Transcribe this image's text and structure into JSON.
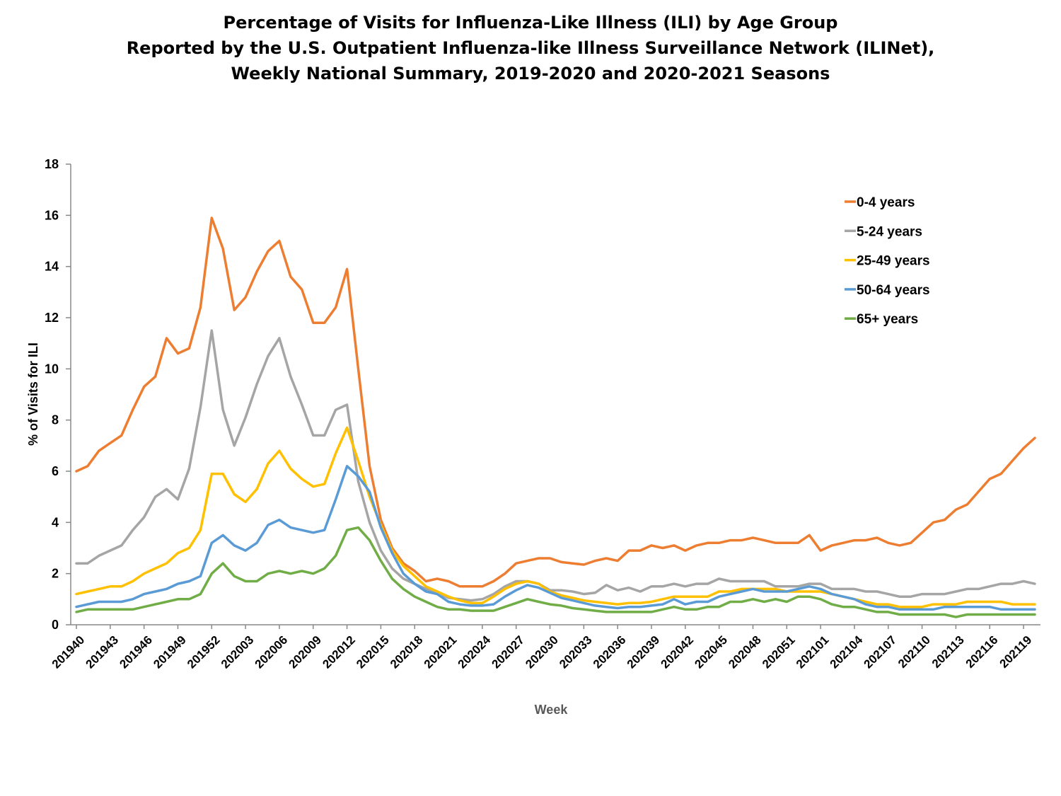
{
  "chart_data": {
    "type": "line",
    "title": [
      "Percentage of Visits for Influenza-Like Illness (ILI) by Age Group",
      "Reported by the U.S. Outpatient Influenza-like Illness Surveillance Network (ILINet),",
      "Weekly National Summary, 2019-2020 and 2020-2021 Seasons"
    ],
    "xlabel": "Week",
    "ylabel": "% of Visits for ILI",
    "ylim": [
      0,
      18
    ],
    "yticks": [
      0,
      2,
      4,
      6,
      8,
      10,
      12,
      14,
      16,
      18
    ],
    "x_count": 86,
    "xtick_labels": [
      {
        "index": 0,
        "label": "201940"
      },
      {
        "index": 3,
        "label": "201943"
      },
      {
        "index": 6,
        "label": "201946"
      },
      {
        "index": 9,
        "label": "201949"
      },
      {
        "index": 12,
        "label": "201952"
      },
      {
        "index": 15,
        "label": "202003"
      },
      {
        "index": 18,
        "label": "202006"
      },
      {
        "index": 21,
        "label": "202009"
      },
      {
        "index": 24,
        "label": "202012"
      },
      {
        "index": 27,
        "label": "202015"
      },
      {
        "index": 30,
        "label": "202018"
      },
      {
        "index": 33,
        "label": "202021"
      },
      {
        "index": 36,
        "label": "202024"
      },
      {
        "index": 39,
        "label": "202027"
      },
      {
        "index": 42,
        "label": "202030"
      },
      {
        "index": 45,
        "label": "202033"
      },
      {
        "index": 48,
        "label": "202036"
      },
      {
        "index": 51,
        "label": "202039"
      },
      {
        "index": 54,
        "label": "202042"
      },
      {
        "index": 57,
        "label": "202045"
      },
      {
        "index": 60,
        "label": "202048"
      },
      {
        "index": 63,
        "label": "202051"
      },
      {
        "index": 66,
        "label": "202101"
      },
      {
        "index": 69,
        "label": "202104"
      },
      {
        "index": 72,
        "label": "202107"
      },
      {
        "index": 75,
        "label": "202110"
      },
      {
        "index": 78,
        "label": "202113"
      },
      {
        "index": 81,
        "label": "202116"
      },
      {
        "index": 84,
        "label": "202119"
      }
    ],
    "legend_position": "top-right",
    "series": [
      {
        "name": "0-4 years",
        "color": "#ED7D31",
        "values": [
          6.0,
          6.2,
          6.8,
          7.1,
          7.4,
          8.4,
          9.3,
          9.7,
          11.2,
          10.6,
          10.8,
          12.4,
          15.9,
          14.7,
          12.3,
          12.8,
          13.8,
          14.6,
          15.0,
          13.6,
          13.1,
          11.8,
          11.8,
          12.4,
          13.9,
          10.0,
          6.2,
          4.1,
          3.0,
          2.4,
          2.1,
          1.7,
          1.8,
          1.7,
          1.5,
          1.5,
          1.5,
          1.7,
          2.0,
          2.4,
          2.5,
          2.6,
          2.6,
          2.45,
          2.4,
          2.35,
          2.5,
          2.6,
          2.5,
          2.9,
          2.9,
          3.1,
          3.0,
          3.1,
          2.9,
          3.1,
          3.2,
          3.2,
          3.3,
          3.3,
          3.4,
          3.3,
          3.2,
          3.2,
          3.2,
          3.5,
          2.9,
          3.1,
          3.2,
          3.3,
          3.3,
          3.4,
          3.2,
          3.1,
          3.2,
          3.6,
          4.0,
          4.1,
          4.5,
          4.7,
          5.2,
          5.7,
          5.9,
          6.4,
          6.9,
          7.3
        ]
      },
      {
        "name": "5-24 years",
        "color": "#A5A5A5",
        "values": [
          2.4,
          2.4,
          2.7,
          2.9,
          3.1,
          3.7,
          4.2,
          5.0,
          5.3,
          4.9,
          6.1,
          8.5,
          11.5,
          8.4,
          7.0,
          8.1,
          9.4,
          10.5,
          11.2,
          9.7,
          8.6,
          7.4,
          7.4,
          8.4,
          8.6,
          5.6,
          4.0,
          2.9,
          2.2,
          1.8,
          1.6,
          1.4,
          1.25,
          1.05,
          1.0,
          0.95,
          1.0,
          1.2,
          1.5,
          1.7,
          1.7,
          1.6,
          1.35,
          1.35,
          1.3,
          1.2,
          1.25,
          1.55,
          1.35,
          1.45,
          1.3,
          1.5,
          1.5,
          1.6,
          1.5,
          1.6,
          1.6,
          1.8,
          1.7,
          1.7,
          1.7,
          1.7,
          1.5,
          1.5,
          1.5,
          1.6,
          1.6,
          1.4,
          1.4,
          1.4,
          1.3,
          1.3,
          1.2,
          1.1,
          1.1,
          1.2,
          1.2,
          1.2,
          1.3,
          1.4,
          1.4,
          1.5,
          1.6,
          1.6,
          1.7,
          1.6
        ]
      },
      {
        "name": "25-49 years",
        "color": "#FFC000",
        "values": [
          1.2,
          1.3,
          1.4,
          1.5,
          1.5,
          1.7,
          2.0,
          2.2,
          2.4,
          2.8,
          3.0,
          3.7,
          5.9,
          5.9,
          5.1,
          4.8,
          5.3,
          6.3,
          6.8,
          6.1,
          5.7,
          5.4,
          5.5,
          6.7,
          7.7,
          6.4,
          5.0,
          3.9,
          2.9,
          2.3,
          1.9,
          1.5,
          1.3,
          1.1,
          0.95,
          0.85,
          0.85,
          1.1,
          1.4,
          1.6,
          1.7,
          1.6,
          1.3,
          1.15,
          1.05,
          0.95,
          0.9,
          0.85,
          0.8,
          0.85,
          0.85,
          0.9,
          1.0,
          1.1,
          1.1,
          1.1,
          1.1,
          1.3,
          1.3,
          1.4,
          1.4,
          1.4,
          1.4,
          1.3,
          1.3,
          1.3,
          1.3,
          1.2,
          1.1,
          1.0,
          0.9,
          0.8,
          0.8,
          0.7,
          0.7,
          0.7,
          0.8,
          0.8,
          0.8,
          0.9,
          0.9,
          0.9,
          0.9,
          0.8,
          0.8,
          0.8
        ]
      },
      {
        "name": "50-64 years",
        "color": "#5B9BD5",
        "values": [
          0.7,
          0.8,
          0.9,
          0.9,
          0.9,
          1.0,
          1.2,
          1.3,
          1.4,
          1.6,
          1.7,
          1.9,
          3.2,
          3.5,
          3.1,
          2.9,
          3.2,
          3.9,
          4.1,
          3.8,
          3.7,
          3.6,
          3.7,
          4.9,
          6.2,
          5.8,
          5.2,
          3.8,
          2.8,
          2.0,
          1.6,
          1.3,
          1.2,
          0.9,
          0.8,
          0.75,
          0.75,
          0.8,
          1.1,
          1.35,
          1.55,
          1.45,
          1.25,
          1.05,
          0.95,
          0.85,
          0.75,
          0.7,
          0.65,
          0.7,
          0.7,
          0.75,
          0.8,
          1.0,
          0.8,
          0.9,
          0.9,
          1.1,
          1.2,
          1.3,
          1.4,
          1.3,
          1.3,
          1.3,
          1.4,
          1.5,
          1.4,
          1.2,
          1.1,
          1.0,
          0.8,
          0.7,
          0.7,
          0.6,
          0.6,
          0.6,
          0.6,
          0.7,
          0.7,
          0.7,
          0.7,
          0.7,
          0.6,
          0.6,
          0.6,
          0.6
        ]
      },
      {
        "name": "65+ years",
        "color": "#70AD47",
        "values": [
          0.5,
          0.6,
          0.6,
          0.6,
          0.6,
          0.6,
          0.7,
          0.8,
          0.9,
          1.0,
          1.0,
          1.2,
          2.0,
          2.4,
          1.9,
          1.7,
          1.7,
          2.0,
          2.1,
          2.0,
          2.1,
          2.0,
          2.2,
          2.7,
          3.7,
          3.8,
          3.3,
          2.5,
          1.8,
          1.4,
          1.1,
          0.9,
          0.7,
          0.6,
          0.6,
          0.55,
          0.55,
          0.55,
          0.7,
          0.85,
          1.0,
          0.9,
          0.8,
          0.75,
          0.65,
          0.6,
          0.55,
          0.5,
          0.5,
          0.5,
          0.5,
          0.5,
          0.6,
          0.7,
          0.6,
          0.6,
          0.7,
          0.7,
          0.9,
          0.9,
          1.0,
          0.9,
          1.0,
          0.9,
          1.1,
          1.1,
          1.0,
          0.8,
          0.7,
          0.7,
          0.6,
          0.5,
          0.5,
          0.4,
          0.4,
          0.4,
          0.4,
          0.4,
          0.3,
          0.4,
          0.4,
          0.4,
          0.4,
          0.4,
          0.4,
          0.4
        ]
      }
    ]
  }
}
